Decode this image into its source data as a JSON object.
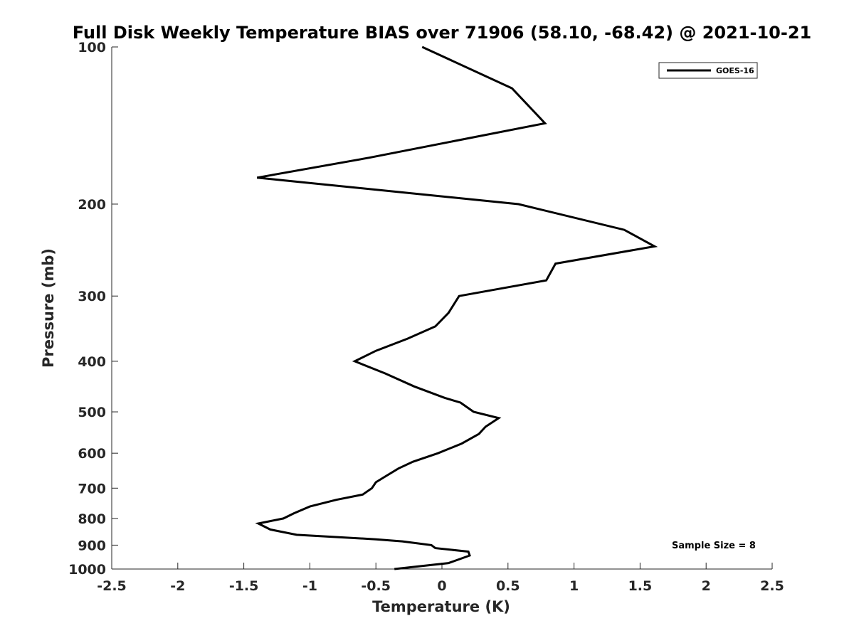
{
  "chart_data": {
    "type": "line",
    "title": "Full Disk Weekly Temperature BIAS over 71906 (58.10, -68.42) @ 2021-10-21",
    "xlabel": "Temperature (K)",
    "ylabel": "Pressure (mb)",
    "xlim": [
      -2.5,
      2.5
    ],
    "ylim": [
      100,
      1000
    ],
    "y_scale": "log",
    "y_direction": "reverse",
    "grid": false,
    "legend_position": "top-right",
    "x_ticks": [
      -2.5,
      -2,
      -1.5,
      -1,
      -0.5,
      0,
      0.5,
      1,
      1.5,
      2,
      2.5
    ],
    "x_tick_labels": [
      "-2.5",
      "-2",
      "-1.5",
      "-1",
      "-0.5",
      "0",
      "0.5",
      "1",
      "1.5",
      "2",
      "2.5"
    ],
    "y_ticks": [
      100,
      200,
      300,
      400,
      500,
      600,
      700,
      800,
      900,
      1000
    ],
    "y_tick_labels": [
      "100",
      "200",
      "300",
      "400",
      "500",
      "600",
      "700",
      "800",
      "900",
      "1000"
    ],
    "annotation": "Sample Size = 8",
    "series": [
      {
        "name": "GOES-16",
        "color": "#000000",
        "points": [
          {
            "x": -0.15,
            "y": 100
          },
          {
            "x": 0.53,
            "y": 120
          },
          {
            "x": 0.78,
            "y": 140
          },
          {
            "x": -0.55,
            "y": 163
          },
          {
            "x": -1.4,
            "y": 178
          },
          {
            "x": 0.58,
            "y": 200
          },
          {
            "x": 1.38,
            "y": 224
          },
          {
            "x": 1.61,
            "y": 241
          },
          {
            "x": 0.86,
            "y": 260
          },
          {
            "x": 0.79,
            "y": 280
          },
          {
            "x": 0.13,
            "y": 300
          },
          {
            "x": 0.05,
            "y": 323
          },
          {
            "x": -0.05,
            "y": 343
          },
          {
            "x": -0.26,
            "y": 362
          },
          {
            "x": -0.5,
            "y": 382
          },
          {
            "x": -0.66,
            "y": 400
          },
          {
            "x": -0.43,
            "y": 422
          },
          {
            "x": -0.21,
            "y": 447
          },
          {
            "x": 0.02,
            "y": 470
          },
          {
            "x": 0.14,
            "y": 480
          },
          {
            "x": 0.24,
            "y": 500
          },
          {
            "x": 0.43,
            "y": 514
          },
          {
            "x": 0.33,
            "y": 534
          },
          {
            "x": 0.28,
            "y": 551
          },
          {
            "x": 0.15,
            "y": 575
          },
          {
            "x": -0.03,
            "y": 600
          },
          {
            "x": -0.22,
            "y": 623
          },
          {
            "x": -0.33,
            "y": 642
          },
          {
            "x": -0.43,
            "y": 665
          },
          {
            "x": -0.5,
            "y": 682
          },
          {
            "x": -0.53,
            "y": 700
          },
          {
            "x": -0.6,
            "y": 720
          },
          {
            "x": -0.8,
            "y": 737
          },
          {
            "x": -1.0,
            "y": 759
          },
          {
            "x": -1.12,
            "y": 782
          },
          {
            "x": -1.2,
            "y": 800
          },
          {
            "x": -1.39,
            "y": 818
          },
          {
            "x": -1.3,
            "y": 840
          },
          {
            "x": -1.1,
            "y": 860
          },
          {
            "x": -0.5,
            "y": 877
          },
          {
            "x": -0.3,
            "y": 885
          },
          {
            "x": -0.08,
            "y": 900
          },
          {
            "x": -0.05,
            "y": 912
          },
          {
            "x": 0.2,
            "y": 926
          },
          {
            "x": 0.21,
            "y": 942
          },
          {
            "x": 0.05,
            "y": 974
          },
          {
            "x": -0.36,
            "y": 1000
          }
        ]
      }
    ]
  }
}
